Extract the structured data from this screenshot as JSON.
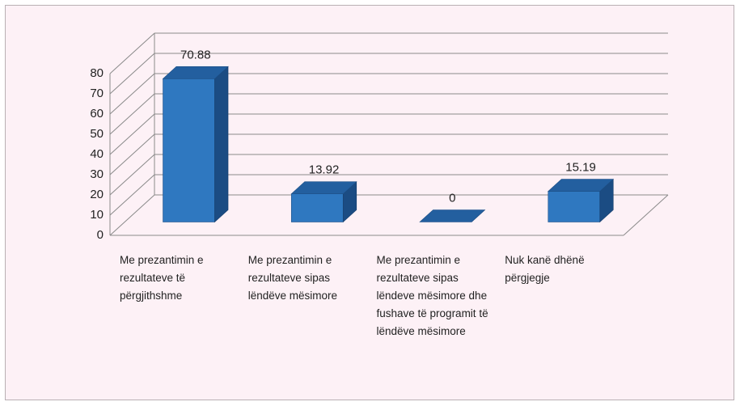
{
  "chart_data": {
    "type": "bar3d",
    "categories": [
      "Me prezantimin e rezultateve të përgjithshme",
      "Me prezantimin e rezultateve sipas lëndëve mësimore",
      "Me prezantimin e rezultateve sipas lëndeve mësimore dhe fushave të programit të lëndëve mësimore",
      "Nuk kanë dhënë përgjegje"
    ],
    "values": [
      70.88,
      13.92,
      0,
      15.19
    ],
    "color": "#2f78c0",
    "ylim": [
      0,
      80
    ],
    "yticks": [
      0,
      10,
      20,
      30,
      40,
      50,
      60,
      70,
      80
    ],
    "grid": true
  }
}
